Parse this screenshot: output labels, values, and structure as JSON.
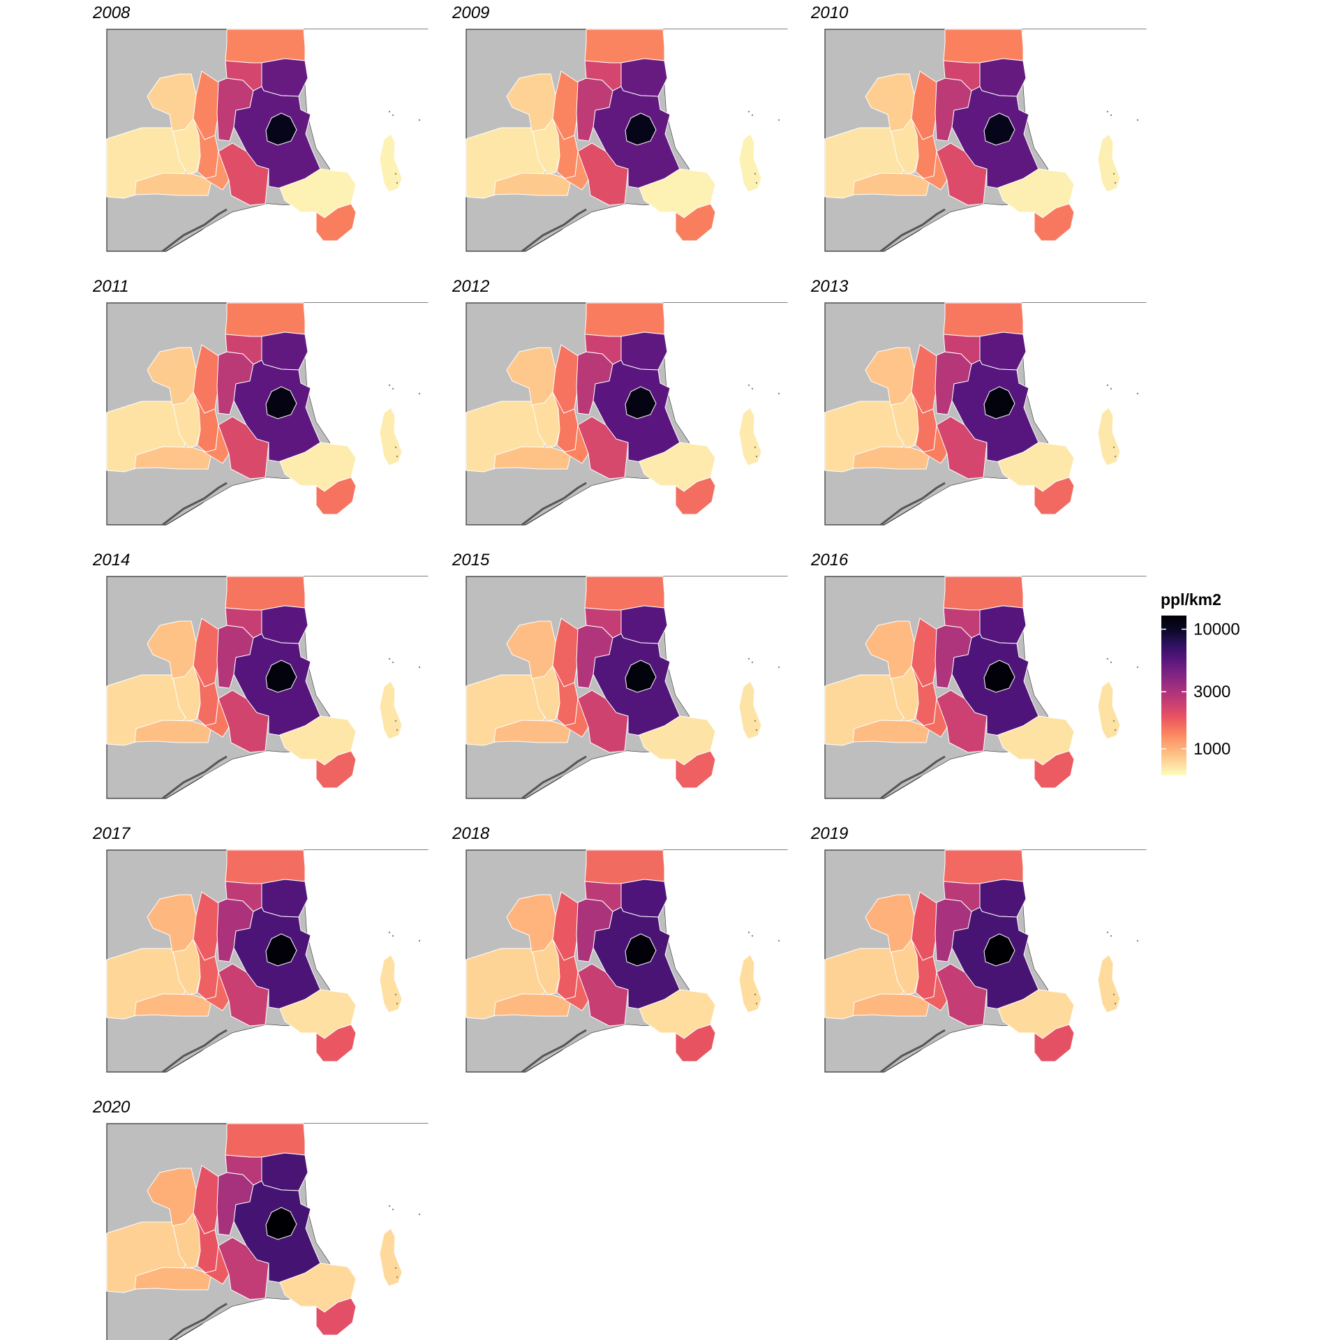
{
  "legend": {
    "title": "ppl/km2",
    "ticks": [
      {
        "label": "10000",
        "value": 10000
      },
      {
        "label": "3000",
        "value": 3000
      },
      {
        "label": "1000",
        "value": 1000
      }
    ],
    "range": [
      600,
      13000
    ],
    "scale": "log",
    "palette": [
      "#fcfdbf",
      "#fed395",
      "#feaa74",
      "#fa7f5e",
      "#e95462",
      "#c83e73",
      "#a3307e",
      "#7e2482",
      "#57157e",
      "#2c115f",
      "#0c0927",
      "#000004"
    ]
  },
  "map": {
    "background_fill": "#bebebe",
    "region_border_color": "#ffffff",
    "panels": [
      {
        "year": "2008",
        "density": {
          "r1": 11000,
          "r2": 5200,
          "r3": 5000,
          "r4": 2200,
          "r5": 2600,
          "r6": 1350,
          "r7": 1400,
          "r8": 1200,
          "r9": 1300,
          "r10": 1350,
          "r11": 2000,
          "r12": 650,
          "r13": 800,
          "r14": 700,
          "r15": 850,
          "r16": 700
        }
      },
      {
        "year": "2009",
        "density": {
          "r1": 11000,
          "r2": 5200,
          "r3": 5000,
          "r4": 2200,
          "r5": 2600,
          "r6": 1350,
          "r7": 1400,
          "r8": 1200,
          "r9": 1300,
          "r10": 1350,
          "r11": 2000,
          "r12": 650,
          "r13": 800,
          "r14": 700,
          "r15": 850,
          "r16": 700
        }
      },
      {
        "year": "2010",
        "density": {
          "r1": 11000,
          "r2": 5300,
          "r3": 5100,
          "r4": 2250,
          "r5": 2650,
          "r6": 1380,
          "r7": 1450,
          "r8": 1250,
          "r9": 1350,
          "r10": 1400,
          "r11": 2050,
          "r12": 660,
          "r13": 820,
          "r14": 720,
          "r15": 870,
          "r16": 710
        }
      },
      {
        "year": "2011",
        "density": {
          "r1": 11500,
          "r2": 5400,
          "r3": 5200,
          "r4": 2300,
          "r5": 2700,
          "r6": 1400,
          "r7": 1500,
          "r8": 1300,
          "r9": 1400,
          "r10": 1450,
          "r11": 2100,
          "r12": 670,
          "r13": 840,
          "r14": 730,
          "r15": 880,
          "r16": 720
        }
      },
      {
        "year": "2012",
        "density": {
          "r1": 11500,
          "r2": 5500,
          "r3": 5300,
          "r4": 2350,
          "r5": 2750,
          "r6": 1420,
          "r7": 1550,
          "r8": 1350,
          "r9": 1450,
          "r10": 1500,
          "r11": 2150,
          "r12": 680,
          "r13": 860,
          "r14": 740,
          "r15": 890,
          "r16": 730
        }
      },
      {
        "year": "2013",
        "density": {
          "r1": 12000,
          "r2": 5600,
          "r3": 5400,
          "r4": 2400,
          "r5": 2800,
          "r6": 1450,
          "r7": 1600,
          "r8": 1400,
          "r9": 1500,
          "r10": 1550,
          "r11": 2200,
          "r12": 690,
          "r13": 880,
          "r14": 750,
          "r15": 900,
          "r16": 740
        }
      },
      {
        "year": "2014",
        "density": {
          "r1": 12000,
          "r2": 5700,
          "r3": 5500,
          "r4": 2450,
          "r5": 2850,
          "r6": 1480,
          "r7": 1650,
          "r8": 1450,
          "r9": 1550,
          "r10": 1600,
          "r11": 2250,
          "r12": 700,
          "r13": 900,
          "r14": 760,
          "r15": 910,
          "r16": 750
        }
      },
      {
        "year": "2015",
        "density": {
          "r1": 12000,
          "r2": 5800,
          "r3": 5600,
          "r4": 2500,
          "r5": 2900,
          "r6": 1500,
          "r7": 1700,
          "r8": 1500,
          "r9": 1600,
          "r10": 1650,
          "r11": 2300,
          "r12": 710,
          "r13": 920,
          "r14": 770,
          "r15": 920,
          "r16": 760
        }
      },
      {
        "year": "2016",
        "density": {
          "r1": 12500,
          "r2": 5900,
          "r3": 5700,
          "r4": 2550,
          "r5": 2950,
          "r6": 1520,
          "r7": 1750,
          "r8": 1550,
          "r9": 1650,
          "r10": 1700,
          "r11": 2350,
          "r12": 720,
          "r13": 940,
          "r14": 780,
          "r15": 930,
          "r16": 770
        }
      },
      {
        "year": "2017",
        "density": {
          "r1": 12500,
          "r2": 6000,
          "r3": 5800,
          "r4": 2600,
          "r5": 3000,
          "r6": 1550,
          "r7": 1800,
          "r8": 1600,
          "r9": 1700,
          "r10": 1750,
          "r11": 2400,
          "r12": 730,
          "r13": 960,
          "r14": 790,
          "r15": 940,
          "r16": 780
        }
      },
      {
        "year": "2018",
        "density": {
          "r1": 12500,
          "r2": 6100,
          "r3": 5900,
          "r4": 2650,
          "r5": 3050,
          "r6": 1580,
          "r7": 1850,
          "r8": 1650,
          "r9": 1750,
          "r10": 1800,
          "r11": 2450,
          "r12": 740,
          "r13": 980,
          "r14": 800,
          "r15": 950,
          "r16": 790
        }
      },
      {
        "year": "2019",
        "density": {
          "r1": 13000,
          "r2": 6200,
          "r3": 6000,
          "r4": 2700,
          "r5": 3100,
          "r6": 1600,
          "r7": 1900,
          "r8": 1700,
          "r9": 1800,
          "r10": 1850,
          "r11": 2500,
          "r12": 750,
          "r13": 1000,
          "r14": 810,
          "r15": 960,
          "r16": 800
        }
      },
      {
        "year": "2020",
        "density": {
          "r1": 13000,
          "r2": 6300,
          "r3": 6100,
          "r4": 2750,
          "r5": 3150,
          "r6": 1620,
          "r7": 1950,
          "r8": 1750,
          "r9": 1850,
          "r10": 1900,
          "r11": 2550,
          "r12": 760,
          "r13": 1020,
          "r14": 820,
          "r15": 970,
          "r16": 810
        }
      }
    ]
  }
}
